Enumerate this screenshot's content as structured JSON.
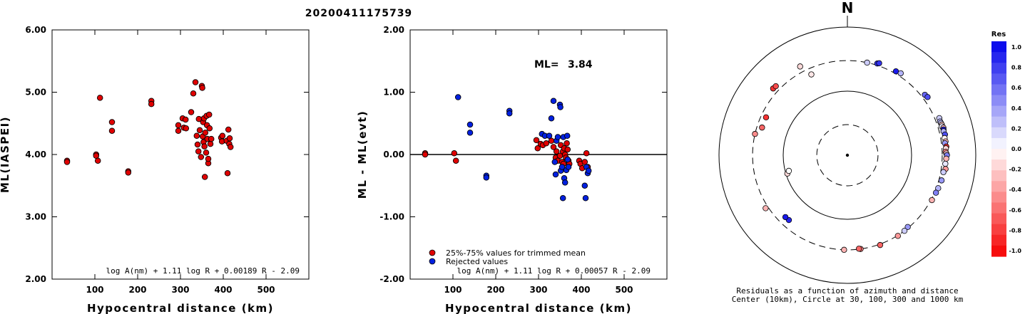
{
  "event_id": "20200411175739",
  "colors": {
    "accepted": "#e00000",
    "rejected": "#0020e0",
    "zero_line": "#000000"
  },
  "chart_data": [
    {
      "type": "scatter",
      "ylabel": "ML(IASPEI)",
      "xlabel": "Hypocentral distance (km)",
      "xlim": [
        0,
        600
      ],
      "ylim": [
        2.0,
        6.0
      ],
      "x_ticks": [
        "100",
        "200",
        "300",
        "400",
        "500"
      ],
      "y_ticks": [
        "2.00",
        "3.00",
        "4.00",
        "5.00",
        "6.00"
      ],
      "formula": "log A(nm) + 1.11 log R + 0.00189 R - 2.09",
      "series": [
        {
          "color": "red",
          "points": [
            [
              35,
              3.9
            ],
            [
              35,
              3.88
            ],
            [
              103,
              4.0
            ],
            [
              103,
              3.98
            ],
            [
              107,
              3.9
            ],
            [
              112,
              4.91
            ],
            [
              140,
              4.52
            ],
            [
              140,
              4.38
            ],
            [
              178,
              3.73
            ],
            [
              178,
              3.71
            ],
            [
              232,
              4.86
            ],
            [
              232,
              4.81
            ],
            [
              295,
              4.47
            ],
            [
              295,
              4.38
            ],
            [
              305,
              4.58
            ],
            [
              308,
              4.43
            ],
            [
              312,
              4.56
            ],
            [
              313,
              4.42
            ],
            [
              325,
              4.68
            ],
            [
              330,
              4.98
            ],
            [
              335,
              5.16
            ],
            [
              338,
              4.3
            ],
            [
              340,
              4.16
            ],
            [
              342,
              4.05
            ],
            [
              343,
              4.57
            ],
            [
              345,
              4.39
            ],
            [
              348,
              3.96
            ],
            [
              350,
              5.1
            ],
            [
              351,
              5.07
            ],
            [
              352,
              4.29
            ],
            [
              353,
              4.52
            ],
            [
              354,
              4.2
            ],
            [
              355,
              4.58
            ],
            [
              356,
              4.13
            ],
            [
              357,
              3.64
            ],
            [
              358,
              4.35
            ],
            [
              360,
              4.03
            ],
            [
              361,
              4.62
            ],
            [
              362,
              4.47
            ],
            [
              363,
              4.25
            ],
            [
              365,
              3.86
            ],
            [
              365,
              3.93
            ],
            [
              367,
              4.64
            ],
            [
              368,
              4.42
            ],
            [
              370,
              4.17
            ],
            [
              372,
              4.25
            ],
            [
              395,
              4.27
            ],
            [
              397,
              4.21
            ],
            [
              398,
              4.3
            ],
            [
              408,
              4.22
            ],
            [
              410,
              3.7
            ],
            [
              412,
              4.4
            ],
            [
              414,
              4.17
            ],
            [
              415,
              4.26
            ],
            [
              417,
              4.12
            ]
          ]
        }
      ]
    },
    {
      "type": "scatter",
      "ylabel": "ML - ML(evt)",
      "xlabel": "Hypocentral distance (km)",
      "xlim": [
        0,
        600
      ],
      "ylim": [
        -2.0,
        2.0
      ],
      "x_ticks": [
        "100",
        "200",
        "300",
        "400",
        "500"
      ],
      "y_ticks": [
        "-2.00",
        "-1.00",
        "0.00",
        "1.00",
        "2.00"
      ],
      "annotation_label": "ML=",
      "annotation_value": "3.84",
      "legend": [
        "25%-75% values for trimmed mean",
        "Rejected values"
      ],
      "formula": "log A(nm) + 1.11 log R + 0.00057 R - 2.09",
      "series": [
        {
          "name": "25%-75% values for trimmed mean",
          "color": "red",
          "points": [
            [
              35,
              0.02
            ],
            [
              35,
              0.0
            ],
            [
              103,
              0.02
            ],
            [
              107,
              -0.1
            ],
            [
              295,
              0.23
            ],
            [
              298,
              0.1
            ],
            [
              305,
              0.17
            ],
            [
              310,
              0.15
            ],
            [
              318,
              0.18
            ],
            [
              330,
              0.22
            ],
            [
              335,
              0.12
            ],
            [
              340,
              -0.05
            ],
            [
              342,
              0.05
            ],
            [
              345,
              -0.1
            ],
            [
              350,
              -0.02
            ],
            [
              352,
              0.15
            ],
            [
              355,
              -0.12
            ],
            [
              357,
              0.05
            ],
            [
              358,
              -0.15
            ],
            [
              360,
              0.1
            ],
            [
              362,
              0.0
            ],
            [
              364,
              -0.05
            ],
            [
              366,
              0.18
            ],
            [
              368,
              0.08
            ],
            [
              370,
              -0.1
            ],
            [
              372,
              -0.15
            ],
            [
              395,
              -0.1
            ],
            [
              398,
              -0.15
            ],
            [
              402,
              -0.22
            ],
            [
              408,
              -0.12
            ],
            [
              412,
              0.02
            ],
            [
              415,
              -0.2
            ]
          ]
        },
        {
          "name": "Rejected values",
          "color": "blue",
          "points": [
            [
              112,
              0.92
            ],
            [
              140,
              0.48
            ],
            [
              140,
              0.35
            ],
            [
              178,
              -0.34
            ],
            [
              178,
              -0.37
            ],
            [
              232,
              0.7
            ],
            [
              232,
              0.66
            ],
            [
              308,
              0.33
            ],
            [
              315,
              0.3
            ],
            [
              325,
              0.3
            ],
            [
              330,
              0.58
            ],
            [
              335,
              0.86
            ],
            [
              338,
              -0.12
            ],
            [
              340,
              -0.32
            ],
            [
              342,
              0.22
            ],
            [
              345,
              0.28
            ],
            [
              350,
              0.8
            ],
            [
              351,
              0.76
            ],
            [
              352,
              -0.26
            ],
            [
              355,
              -0.2
            ],
            [
              357,
              -0.7
            ],
            [
              358,
              0.28
            ],
            [
              360,
              -0.38
            ],
            [
              362,
              -0.45
            ],
            [
              365,
              -0.25
            ],
            [
              367,
              0.3
            ],
            [
              368,
              -0.08
            ],
            [
              370,
              -0.2
            ],
            [
              408,
              -0.5
            ],
            [
              410,
              -0.7
            ],
            [
              412,
              -0.2
            ],
            [
              415,
              -0.3
            ],
            [
              417,
              -0.26
            ]
          ]
        }
      ]
    },
    {
      "type": "scatter",
      "subtype": "polar",
      "north_label": "N",
      "rings_km": [
        30,
        100,
        300,
        1000
      ],
      "ring_style": [
        "dashed",
        "solid",
        "dashed",
        "solid"
      ],
      "caption_line1": "Residuals as a function of azimuth and distance",
      "caption_line2": "Center (10km), Circle at 30, 100, 300 and 1000 km",
      "colorbar": {
        "title": "Res",
        "range": [
          -1.0,
          1.0
        ],
        "tick_labels": [
          "1.0",
          "0.8",
          "0.6",
          "0.4",
          "0.2",
          "0.0",
          "-0.2",
          "-0.4",
          "-0.6",
          "-0.8",
          "-1.0"
        ]
      },
      "points": [
        [
          12,
          300,
          0.2
        ],
        [
          18,
          320,
          0.8
        ],
        [
          19,
          330,
          0.8
        ],
        [
          30,
          325,
          0.9
        ],
        [
          33,
          335,
          0.3
        ],
        [
          52,
          340,
          0.6
        ],
        [
          54,
          350,
          0.7
        ],
        [
          68,
          350,
          0.2
        ],
        [
          70,
          345,
          0.3
        ],
        [
          71,
          348,
          0.2
        ],
        [
          72,
          352,
          -0.2
        ],
        [
          73,
          345,
          0.1
        ],
        [
          74,
          360,
          -0.25
        ],
        [
          75,
          355,
          0.9
        ],
        [
          76,
          350,
          0.3
        ],
        [
          78,
          358,
          0.7
        ],
        [
          80,
          345,
          -0.05
        ],
        [
          82,
          350,
          -0.3
        ],
        [
          83,
          340,
          0.4
        ],
        [
          85,
          352,
          -0.8
        ],
        [
          86,
          345,
          -0.15
        ],
        [
          88,
          340,
          -0.5
        ],
        [
          89,
          348,
          -0.2
        ],
        [
          90,
          355,
          0.5
        ],
        [
          92,
          347,
          -0.3
        ],
        [
          95,
          340,
          0.1
        ],
        [
          98,
          350,
          -0.4
        ],
        [
          100,
          330,
          0.2
        ],
        [
          105,
          330,
          0.4
        ],
        [
          110,
          320,
          0.3
        ],
        [
          113,
          315,
          0.5
        ],
        [
          118,
          310,
          -0.3
        ],
        [
          140,
          290,
          0.4
        ],
        [
          143,
          300,
          0.2
        ],
        [
          148,
          305,
          -0.4
        ],
        [
          160,
          310,
          -0.6
        ],
        [
          172,
          300,
          -0.5
        ],
        [
          173,
          295,
          -0.6
        ],
        [
          182,
          300,
          -0.3
        ],
        [
          222,
          230,
          0.85
        ],
        [
          225,
          232,
          0.9
        ],
        [
          237,
          330,
          -0.3
        ],
        [
          253,
          95,
          -0.15
        ],
        [
          255,
          88,
          0.0
        ],
        [
          283,
          300,
          -0.45
        ],
        [
          288,
          250,
          -0.6
        ],
        [
          295,
          250,
          -0.8
        ],
        [
          312,
          360,
          -0.8
        ],
        [
          314,
          355,
          -0.7
        ],
        [
          332,
          370,
          -0.15
        ],
        [
          336,
          240,
          -0.1
        ]
      ]
    }
  ]
}
